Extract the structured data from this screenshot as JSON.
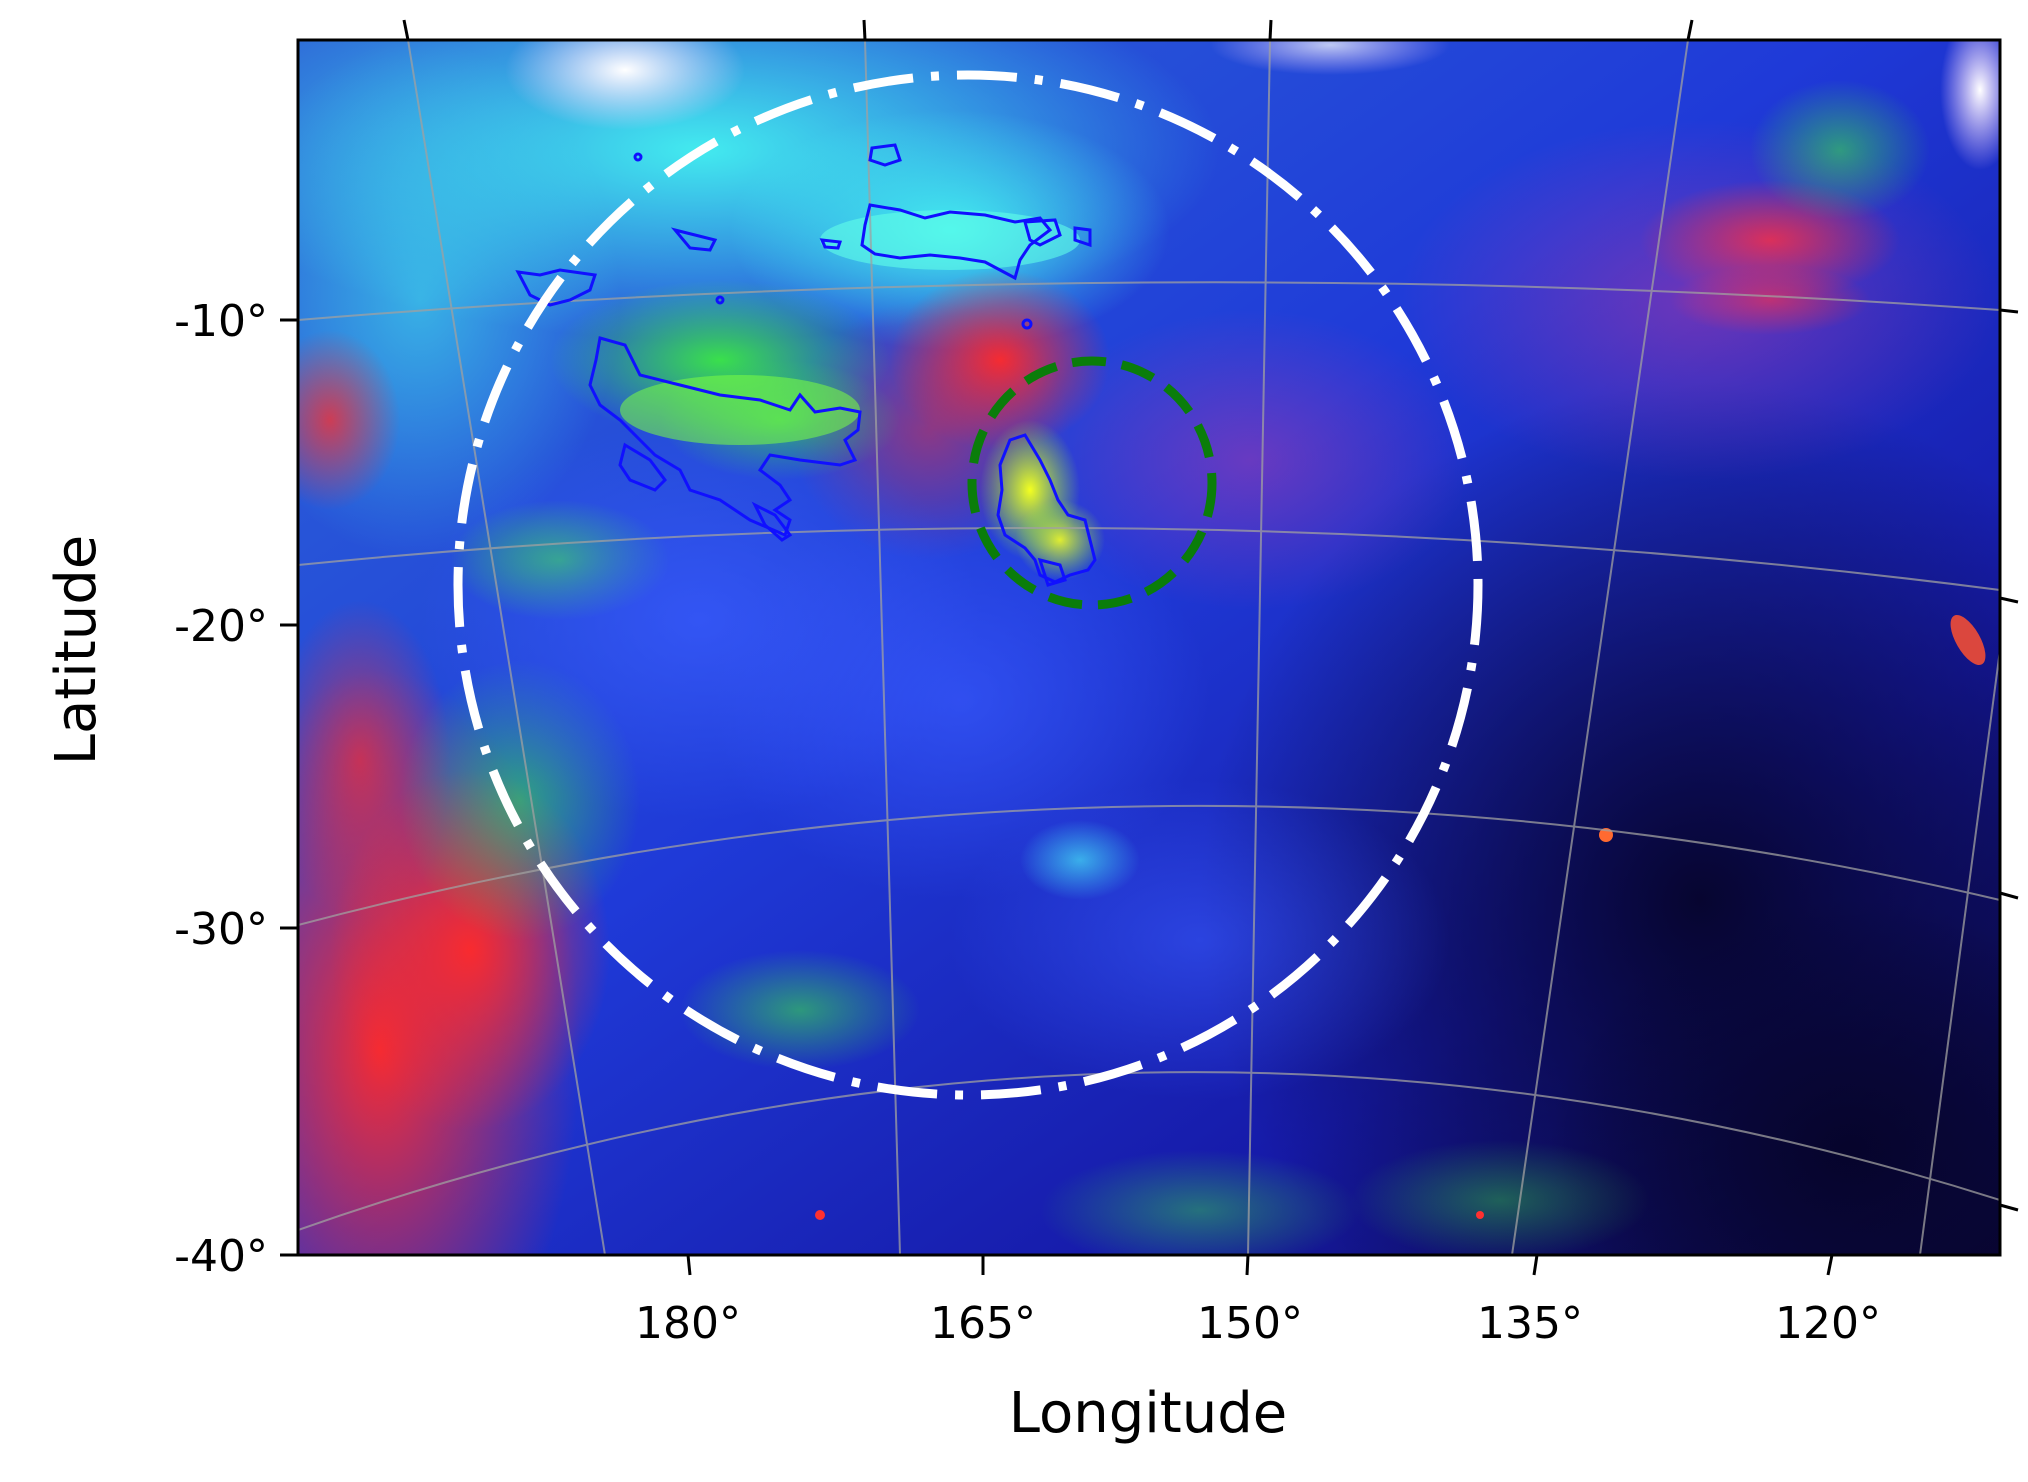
{
  "figure": {
    "xlabel": "Longitude",
    "ylabel": "Latitude",
    "x_ticks": [
      "180°",
      "165°",
      "150°",
      "135°",
      "120°"
    ],
    "y_ticks": [
      "-10°",
      "-20°",
      "-30°",
      "-40°"
    ]
  },
  "overlays": {
    "large_circle_color": "#ffffff",
    "small_circle_color": "#0a7d0a",
    "contour_color": "#1010ff",
    "grid_color": "#a0a0a0"
  }
}
